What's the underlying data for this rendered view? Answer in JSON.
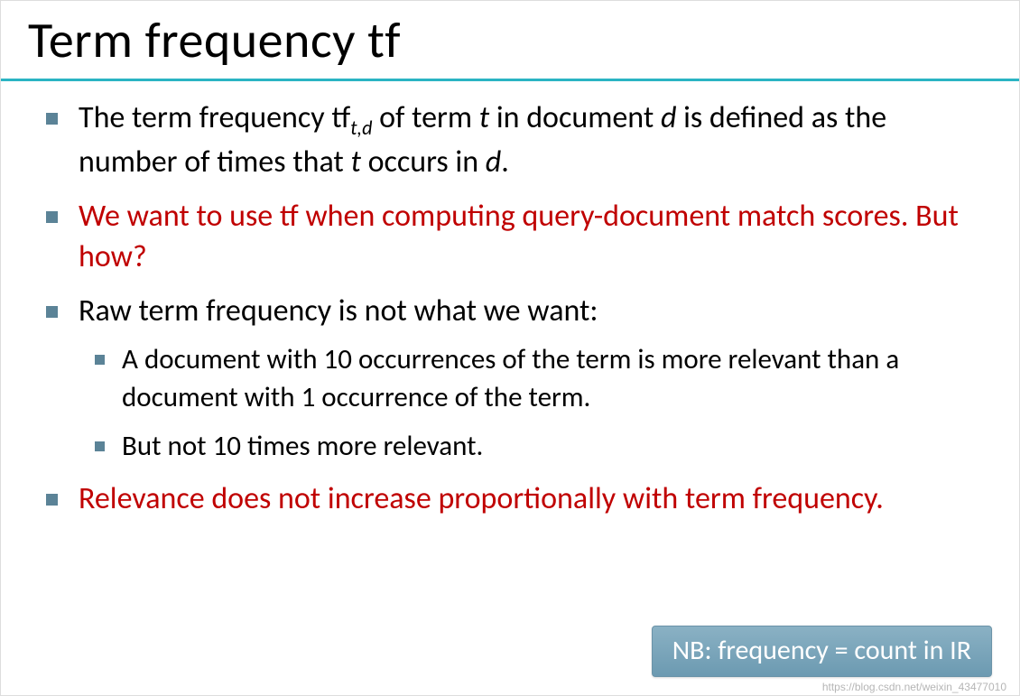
{
  "title": "Term frequency tf",
  "divider_color": "#2bb4c3",
  "bullet_color": "#5b8397",
  "text_color": "#000000",
  "emphasis_color": "#c00000",
  "bullets": {
    "b1_pre": "The term frequency tf",
    "b1_sub": "t,d",
    "b1_mid1": " of term ",
    "b1_t": "t",
    "b1_mid2": " in document ",
    "b1_d": "d",
    "b1_mid3": " is defined as the number of times that ",
    "b1_t2": "t",
    "b1_mid4": " occurs in ",
    "b1_d2": "d",
    "b1_end": ".",
    "b2": "We want to use tf when computing query-document match scores. But how?",
    "b3": "Raw term frequency is not what we want:",
    "b3_sub1": "A document with 10 occurrences of the term is more relevant than a document with 1 occurrence of the term.",
    "b3_sub2": "But not 10 times more relevant.",
    "b4": "Relevance does not increase proportionally with term frequency."
  },
  "callout": {
    "text": "NB: frequency = count in IR",
    "bg": "#7ba6bc",
    "fg": "#ffffff"
  },
  "watermark": "https://blog.csdn.net/weixin_43477010"
}
